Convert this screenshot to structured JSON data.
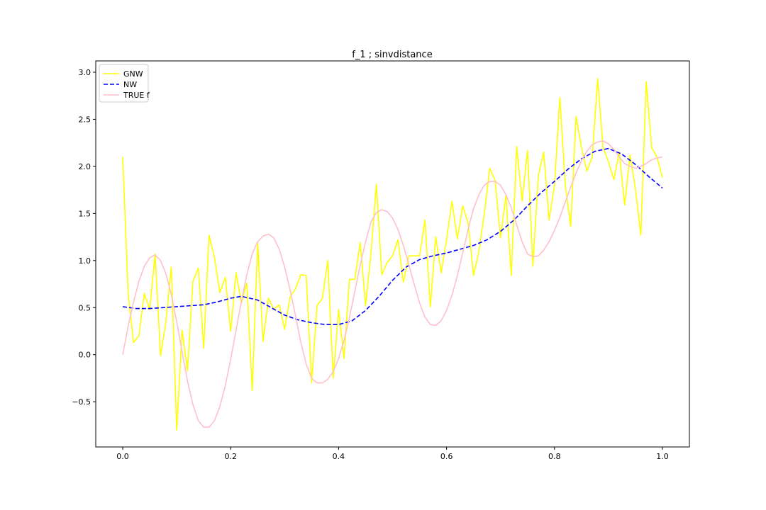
{
  "chart_data": {
    "type": "line",
    "title": "f_1 ; sinvdistance",
    "xlabel": "",
    "ylabel": "",
    "xlim": [
      -0.05,
      1.05
    ],
    "ylim": [
      -0.98,
      3.12
    ],
    "xticks": [
      0.0,
      0.2,
      0.4,
      0.6,
      0.8,
      1.0
    ],
    "xtick_labels": [
      "0.0",
      "0.2",
      "0.4",
      "0.6",
      "0.8",
      "1.0"
    ],
    "yticks": [
      -0.5,
      0.0,
      0.5,
      1.0,
      1.5,
      2.0,
      2.5,
      3.0
    ],
    "ytick_labels": [
      "−0.5",
      "0.0",
      "0.5",
      "1.0",
      "1.5",
      "2.0",
      "2.5",
      "3.0"
    ],
    "grid": false,
    "legend_position": "top-left",
    "series": [
      {
        "name": "GNW",
        "color": "#ffff00",
        "style": "solid",
        "x": [
          0.0,
          0.01,
          0.02,
          0.03,
          0.04,
          0.05,
          0.06,
          0.07,
          0.08,
          0.09,
          0.1,
          0.11,
          0.12,
          0.13,
          0.14,
          0.15,
          0.16,
          0.17,
          0.18,
          0.19,
          0.2,
          0.21,
          0.22,
          0.23,
          0.24,
          0.25,
          0.26,
          0.27,
          0.28,
          0.29,
          0.3,
          0.31,
          0.32,
          0.33,
          0.34,
          0.35,
          0.36,
          0.37,
          0.38,
          0.39,
          0.4,
          0.41,
          0.42,
          0.43,
          0.44,
          0.45,
          0.46,
          0.47,
          0.48,
          0.49,
          0.5,
          0.51,
          0.52,
          0.53,
          0.54,
          0.55,
          0.56,
          0.57,
          0.58,
          0.59,
          0.6,
          0.61,
          0.62,
          0.63,
          0.64,
          0.65,
          0.66,
          0.67,
          0.68,
          0.69,
          0.7,
          0.71,
          0.72,
          0.73,
          0.74,
          0.75,
          0.76,
          0.77,
          0.78,
          0.79,
          0.8,
          0.81,
          0.82,
          0.83,
          0.84,
          0.85,
          0.86,
          0.87,
          0.88,
          0.89,
          0.9,
          0.91,
          0.92,
          0.93,
          0.94,
          0.95,
          0.96,
          0.97,
          0.98,
          0.99,
          1.0
        ],
        "values": [
          2.1,
          0.65,
          0.13,
          0.2,
          0.65,
          0.48,
          1.07,
          -0.01,
          0.35,
          0.93,
          -0.8,
          0.26,
          -0.17,
          0.78,
          0.92,
          0.07,
          1.27,
          1.03,
          0.66,
          0.82,
          0.25,
          0.87,
          0.55,
          0.76,
          -0.38,
          1.19,
          0.14,
          0.6,
          0.48,
          0.53,
          0.27,
          0.61,
          0.7,
          0.85,
          0.84,
          -0.3,
          0.52,
          0.6,
          1.0,
          -0.25,
          0.48,
          -0.04,
          0.8,
          0.8,
          1.19,
          0.52,
          1.08,
          1.81,
          0.85,
          0.98,
          1.05,
          1.22,
          0.77,
          1.05,
          1.05,
          1.05,
          1.43,
          0.51,
          1.25,
          0.87,
          1.22,
          1.63,
          1.23,
          1.58,
          1.4,
          0.84,
          1.1,
          1.5,
          1.98,
          1.85,
          1.24,
          1.69,
          0.84,
          2.21,
          1.63,
          2.17,
          0.94,
          1.9,
          2.15,
          1.43,
          1.8,
          2.73,
          1.8,
          1.36,
          2.53,
          2.2,
          1.95,
          2.1,
          2.93,
          2.2,
          2.05,
          1.86,
          2.15,
          1.59,
          2.12,
          1.76,
          1.27,
          2.9,
          2.2,
          2.1,
          1.88
        ]
      },
      {
        "name": "NW",
        "color": "#0000ff",
        "style": "dashed",
        "x": [
          0.0,
          0.025,
          0.05,
          0.075,
          0.1,
          0.125,
          0.15,
          0.175,
          0.2,
          0.22,
          0.25,
          0.275,
          0.3,
          0.325,
          0.35,
          0.375,
          0.4,
          0.425,
          0.45,
          0.475,
          0.5,
          0.525,
          0.55,
          0.575,
          0.6,
          0.625,
          0.65,
          0.675,
          0.7,
          0.725,
          0.75,
          0.775,
          0.8,
          0.825,
          0.85,
          0.875,
          0.9,
          0.925,
          0.95,
          0.975,
          1.0
        ],
        "values": [
          0.51,
          0.49,
          0.49,
          0.5,
          0.51,
          0.52,
          0.53,
          0.56,
          0.6,
          0.62,
          0.58,
          0.5,
          0.42,
          0.37,
          0.34,
          0.32,
          0.32,
          0.36,
          0.47,
          0.62,
          0.79,
          0.93,
          1.01,
          1.05,
          1.08,
          1.12,
          1.16,
          1.22,
          1.31,
          1.43,
          1.58,
          1.72,
          1.84,
          1.97,
          2.08,
          2.16,
          2.19,
          2.13,
          2.02,
          1.89,
          1.77
        ]
      },
      {
        "name": "TRUE f",
        "color": "#ffc0cb",
        "style": "solid",
        "x": [
          0.0,
          0.01,
          0.02,
          0.03,
          0.04,
          0.05,
          0.06,
          0.07,
          0.08,
          0.09,
          0.1,
          0.11,
          0.12,
          0.13,
          0.14,
          0.15,
          0.16,
          0.17,
          0.18,
          0.19,
          0.2,
          0.21,
          0.22,
          0.23,
          0.24,
          0.25,
          0.26,
          0.27,
          0.28,
          0.29,
          0.3,
          0.31,
          0.32,
          0.33,
          0.34,
          0.35,
          0.36,
          0.37,
          0.38,
          0.39,
          0.4,
          0.41,
          0.42,
          0.43,
          0.44,
          0.45,
          0.46,
          0.47,
          0.48,
          0.49,
          0.5,
          0.51,
          0.52,
          0.53,
          0.54,
          0.55,
          0.56,
          0.57,
          0.58,
          0.59,
          0.6,
          0.61,
          0.62,
          0.63,
          0.64,
          0.65,
          0.66,
          0.67,
          0.68,
          0.69,
          0.7,
          0.71,
          0.72,
          0.73,
          0.74,
          0.75,
          0.76,
          0.77,
          0.78,
          0.79,
          0.8,
          0.81,
          0.82,
          0.83,
          0.84,
          0.85,
          0.86,
          0.87,
          0.88,
          0.89,
          0.9,
          0.91,
          0.92,
          0.93,
          0.94,
          0.95,
          0.96,
          0.97,
          0.98,
          0.99,
          1.0
        ],
        "values": [
          0.0,
          0.3,
          0.56,
          0.78,
          0.94,
          1.03,
          1.06,
          1.0,
          0.86,
          0.64,
          0.35,
          0.03,
          -0.28,
          -0.53,
          -0.7,
          -0.77,
          -0.77,
          -0.7,
          -0.55,
          -0.33,
          -0.05,
          0.26,
          0.57,
          0.85,
          1.07,
          1.2,
          1.26,
          1.28,
          1.24,
          1.12,
          0.93,
          0.69,
          0.42,
          0.13,
          -0.1,
          -0.25,
          -0.3,
          -0.3,
          -0.26,
          -0.18,
          -0.04,
          0.15,
          0.39,
          0.67,
          0.95,
          1.2,
          1.41,
          1.51,
          1.54,
          1.52,
          1.45,
          1.33,
          1.16,
          0.96,
          0.75,
          0.55,
          0.4,
          0.32,
          0.31,
          0.36,
          0.47,
          0.63,
          0.84,
          1.08,
          1.33,
          1.55,
          1.7,
          1.8,
          1.84,
          1.84,
          1.8,
          1.7,
          1.56,
          1.38,
          1.2,
          1.07,
          1.04,
          1.05,
          1.11,
          1.2,
          1.32,
          1.46,
          1.62,
          1.78,
          1.93,
          2.06,
          2.16,
          2.23,
          2.26,
          2.27,
          2.24,
          2.18,
          2.1,
          2.03,
          2.0,
          1.98,
          2.0,
          2.03,
          2.07,
          2.09,
          2.1
        ]
      }
    ]
  }
}
